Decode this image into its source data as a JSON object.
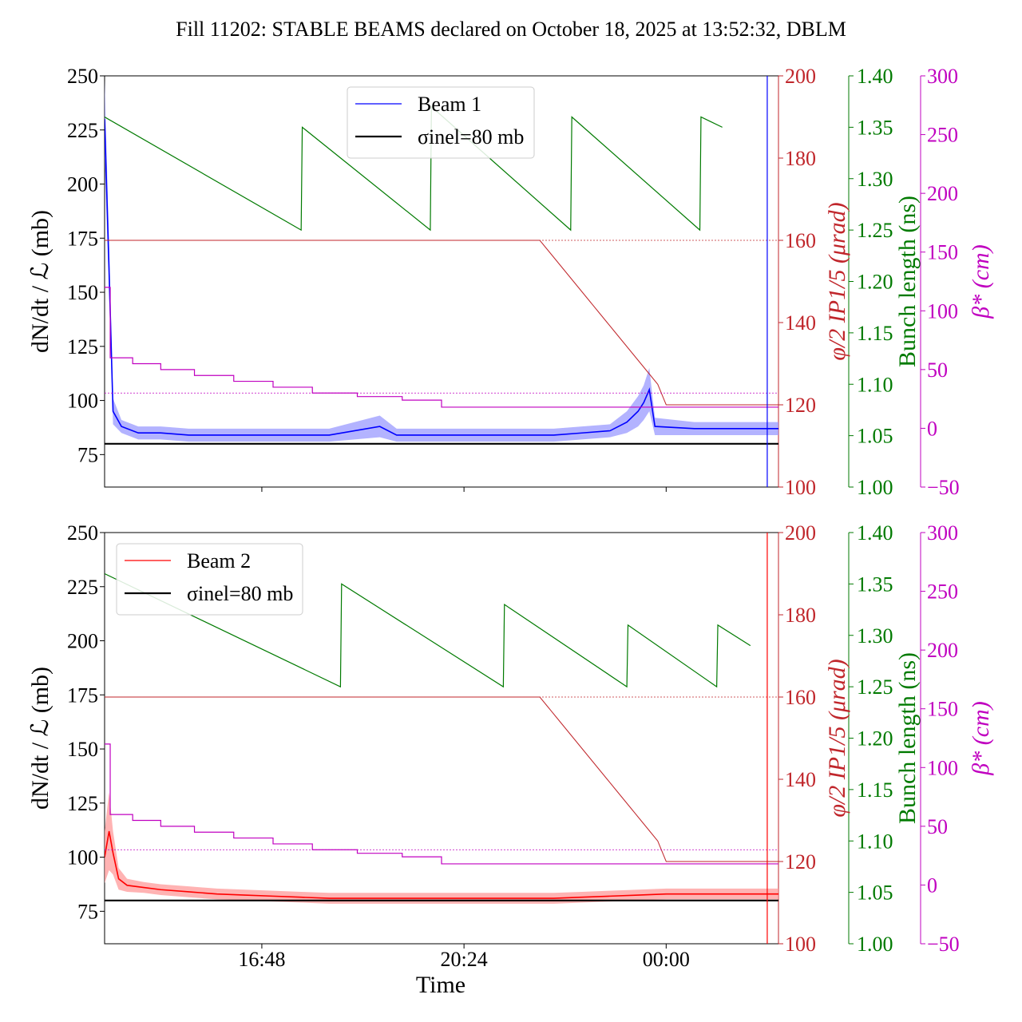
{
  "figure": {
    "title": "Fill 11202: STABLE BEAMS declared on October 18, 2025 at 13:52:32, DBLM",
    "xlabel": "Time",
    "x_tick_labels": [
      "16:48",
      "20:24",
      "00:00"
    ]
  },
  "colors": {
    "beam1": "#0000ff",
    "beam1_band": "#9a9aff",
    "beam2": "#ff0000",
    "beam2_band": "#ff9a9a",
    "crossing": "#c0262b",
    "bunch": "#007a00",
    "beta": "#c000c0",
    "reference": "#000000"
  },
  "chart_data": [
    {
      "type": "line",
      "panel": "top",
      "legend": [
        "Beam 1",
        "σinel=80 mb"
      ],
      "legend_position": "top-center",
      "x_hours_start": "14:00",
      "x_tick_labels": [
        "16:48",
        "20:24",
        "00:00"
      ],
      "axes": {
        "left": {
          "label": "dN/dt / ℒ (mb)",
          "ylim": [
            60,
            250
          ],
          "ticks": [
            75,
            100,
            125,
            150,
            175,
            200,
            225,
            250
          ]
        },
        "right1": {
          "label": "φ/2 IP1/5 (μrad)",
          "ylim": [
            100,
            200
          ],
          "ticks": [
            100,
            120,
            140,
            160,
            180,
            200
          ]
        },
        "right2": {
          "label": "Bunch length (ns)",
          "ylim": [
            1.0,
            1.4
          ],
          "ticks": [
            1.0,
            1.05,
            1.1,
            1.15,
            1.2,
            1.25,
            1.3,
            1.35,
            1.4
          ]
        },
        "right3": {
          "label": "β* (cm)",
          "ylim": [
            -50,
            300
          ],
          "ticks": [
            -50,
            0,
            50,
            100,
            150,
            200,
            250,
            300
          ]
        }
      },
      "series": [
        {
          "name": "Beam 1",
          "axis": "left",
          "x": [
            14.0,
            14.08,
            14.15,
            14.3,
            14.6,
            15.0,
            15.5,
            16.0,
            16.5,
            17.0,
            17.5,
            18.0,
            18.9,
            19.2,
            19.5,
            19.8,
            20.5,
            21.0,
            21.5,
            22.0,
            22.5,
            23.0,
            23.3,
            23.5,
            23.6,
            23.7,
            23.8,
            24.5,
            25.0,
            25.5,
            26.0
          ],
          "y": [
            230,
            160,
            95,
            88,
            85,
            85,
            84,
            84,
            84,
            84,
            84,
            84,
            88,
            84,
            84,
            84,
            84,
            84,
            84,
            84,
            85,
            86,
            90,
            95,
            99,
            105,
            88,
            87,
            87,
            87,
            87
          ],
          "band": [
            18,
            12,
            6,
            3,
            3,
            3,
            3,
            3,
            3,
            3,
            3,
            3,
            5,
            3,
            3,
            3,
            3,
            3,
            3,
            3,
            3,
            3,
            5,
            7,
            8,
            10,
            4,
            3,
            3,
            3,
            3
          ]
        },
        {
          "name": "σinel=80 mb",
          "axis": "left",
          "x": [
            14.0,
            26.0
          ],
          "y": [
            80,
            80
          ]
        },
        {
          "name": "crossing angle",
          "axis": "right1",
          "x": [
            14.0,
            21.75,
            21.9,
            22.05,
            22.2,
            22.35,
            22.5,
            22.65,
            22.8,
            22.95,
            23.1,
            23.25,
            23.4,
            23.55,
            23.7,
            23.85,
            24.0,
            26.0
          ],
          "y": [
            160,
            160,
            157.5,
            155,
            152.5,
            150,
            147.5,
            145,
            142.5,
            140,
            137.5,
            135,
            132.5,
            130,
            127.5,
            125,
            120,
            120
          ]
        },
        {
          "name": "bunch length",
          "axis": "right2",
          "x": [
            14.0,
            17.5,
            17.52,
            19.8,
            19.82,
            22.3,
            22.32,
            24.6,
            24.62,
            25.0
          ],
          "y": [
            1.36,
            1.25,
            1.35,
            1.25,
            1.37,
            1.25,
            1.36,
            1.25,
            1.36,
            1.35
          ]
        },
        {
          "name": "beta star",
          "axis": "right3",
          "x": [
            14.0,
            14.1,
            14.1,
            14.5,
            14.5,
            15.0,
            15.0,
            15.6,
            15.6,
            16.3,
            16.3,
            17.0,
            17.0,
            17.7,
            17.7,
            18.5,
            18.5,
            19.3,
            19.3,
            20.0,
            20.0,
            26.0
          ],
          "y": [
            120,
            120,
            60,
            60,
            55,
            55,
            50,
            50,
            45,
            45,
            40,
            40,
            35,
            35,
            30,
            30,
            27,
            27,
            24,
            24,
            18,
            18
          ]
        }
      ]
    },
    {
      "type": "line",
      "panel": "bottom",
      "legend": [
        "Beam 2",
        "σinel=80 mb"
      ],
      "legend_position": "top-left",
      "x_tick_labels": [
        "16:48",
        "20:24",
        "00:00"
      ],
      "xlabel": "Time",
      "axes": {
        "left": {
          "label": "dN/dt / ℒ (mb)",
          "ylim": [
            60,
            250
          ],
          "ticks": [
            75,
            100,
            125,
            150,
            175,
            200,
            225,
            250
          ]
        },
        "right1": {
          "label": "φ/2 IP1/5 (μrad)",
          "ylim": [
            100,
            200
          ],
          "ticks": [
            100,
            120,
            140,
            160,
            180,
            200
          ]
        },
        "right2": {
          "label": "Bunch length (ns)",
          "ylim": [
            1.0,
            1.4
          ],
          "ticks": [
            1.0,
            1.05,
            1.1,
            1.15,
            1.2,
            1.25,
            1.3,
            1.35,
            1.4
          ]
        },
        "right3": {
          "label": "β* (cm)",
          "ylim": [
            -50,
            300
          ],
          "ticks": [
            -50,
            0,
            50,
            100,
            150,
            200,
            250,
            300
          ]
        }
      },
      "series": [
        {
          "name": "Beam 2",
          "axis": "left",
          "x": [
            14.0,
            14.08,
            14.15,
            14.25,
            14.4,
            14.7,
            15.0,
            15.5,
            16.0,
            16.5,
            17.0,
            17.5,
            18.0,
            18.5,
            19.0,
            19.5,
            20.0,
            20.5,
            21.0,
            21.5,
            22.0,
            22.5,
            23.0,
            23.5,
            24.0,
            24.5,
            25.0,
            25.5,
            26.0
          ],
          "y": [
            100,
            112,
            102,
            90,
            87,
            86,
            85,
            84,
            83,
            82.5,
            82,
            81.5,
            81,
            81,
            81,
            81,
            81,
            81,
            81,
            81,
            81,
            81.5,
            82,
            82.5,
            83,
            83,
            83,
            83,
            83
          ],
          "band": [
            12,
            18,
            10,
            5,
            3,
            2.5,
            2.5,
            2.5,
            2.5,
            2.5,
            2.5,
            2.5,
            2.5,
            2.5,
            2.5,
            2.5,
            2.5,
            2.5,
            2.5,
            2.5,
            2.5,
            2.5,
            2.5,
            2.5,
            2.5,
            2.5,
            2.5,
            2.5,
            2.5
          ]
        },
        {
          "name": "σinel=80 mb",
          "axis": "left",
          "x": [
            14.0,
            26.0
          ],
          "y": [
            80,
            80
          ]
        },
        {
          "name": "crossing angle",
          "axis": "right1",
          "x": [
            14.0,
            21.75,
            21.9,
            22.05,
            22.2,
            22.35,
            22.5,
            22.65,
            22.8,
            22.95,
            23.1,
            23.25,
            23.4,
            23.55,
            23.7,
            23.85,
            24.0,
            26.0
          ],
          "y": [
            160,
            160,
            157.5,
            155,
            152.5,
            150,
            147.5,
            145,
            142.5,
            140,
            137.5,
            135,
            132.5,
            130,
            127.5,
            125,
            120,
            120
          ]
        },
        {
          "name": "bunch length",
          "axis": "right2",
          "x": [
            14.0,
            18.2,
            18.22,
            21.1,
            21.12,
            23.3,
            23.32,
            24.9,
            24.92,
            25.5
          ],
          "y": [
            1.36,
            1.25,
            1.35,
            1.25,
            1.33,
            1.25,
            1.31,
            1.25,
            1.31,
            1.29
          ]
        },
        {
          "name": "beta star",
          "axis": "right3",
          "x": [
            14.0,
            14.1,
            14.1,
            14.5,
            14.5,
            15.0,
            15.0,
            15.6,
            15.6,
            16.3,
            16.3,
            17.0,
            17.0,
            17.7,
            17.7,
            18.5,
            18.5,
            19.3,
            19.3,
            20.0,
            20.0,
            26.0
          ],
          "y": [
            120,
            120,
            60,
            60,
            55,
            55,
            50,
            50,
            45,
            45,
            40,
            40,
            35,
            35,
            30,
            30,
            27,
            27,
            24,
            24,
            18,
            18
          ]
        }
      ]
    }
  ]
}
